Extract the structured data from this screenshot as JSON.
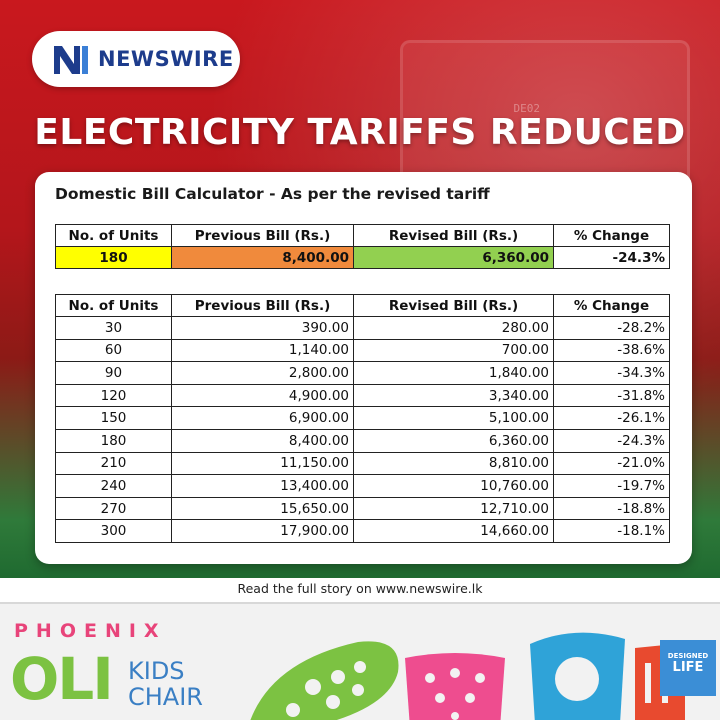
{
  "brand": {
    "name": "NEWSWIRE"
  },
  "headline": "ELECTRICITY TARIFFS REDUCED",
  "meter_label": "DE02",
  "card": {
    "title": "Domestic Bill Calculator - As per the revised tariff",
    "headers": [
      "No. of Units",
      "Previous Bill (Rs.)",
      "Revised Bill (Rs.)",
      "% Change"
    ],
    "summary": {
      "units": "180",
      "previous": "8,400.00",
      "revised": "6,360.00",
      "change": "-24.3%"
    },
    "rows": [
      {
        "units": "30",
        "previous": "390.00",
        "revised": "280.00",
        "change": "-28.2%"
      },
      {
        "units": "60",
        "previous": "1,140.00",
        "revised": "700.00",
        "change": "-38.6%"
      },
      {
        "units": "90",
        "previous": "2,800.00",
        "revised": "1,840.00",
        "change": "-34.3%"
      },
      {
        "units": "120",
        "previous": "4,900.00",
        "revised": "3,340.00",
        "change": "-31.8%"
      },
      {
        "units": "150",
        "previous": "6,900.00",
        "revised": "5,100.00",
        "change": "-26.1%"
      },
      {
        "units": "180",
        "previous": "8,400.00",
        "revised": "6,360.00",
        "change": "-24.3%"
      },
      {
        "units": "210",
        "previous": "11,150.00",
        "revised": "8,810.00",
        "change": "-21.0%"
      },
      {
        "units": "240",
        "previous": "13,400.00",
        "revised": "10,760.00",
        "change": "-19.7%"
      },
      {
        "units": "270",
        "previous": "15,650.00",
        "revised": "12,710.00",
        "change": "-18.8%"
      },
      {
        "units": "300",
        "previous": "17,900.00",
        "revised": "14,660.00",
        "change": "-18.1%"
      }
    ]
  },
  "footer": {
    "text": "Read the full story on www.newswire.lk"
  },
  "ad": {
    "brand": "PHOENIX",
    "product_main": "OLI",
    "product_line1": "KIDS",
    "product_line2": "CHAIR",
    "badge_line1": "DESIGNED",
    "badge_line2": "LIFE"
  },
  "colors": {
    "summary_units": "#ffff00",
    "summary_previous": "#f08a3c",
    "summary_revised": "#92d050",
    "brand_blue": "#1d3c8c"
  }
}
